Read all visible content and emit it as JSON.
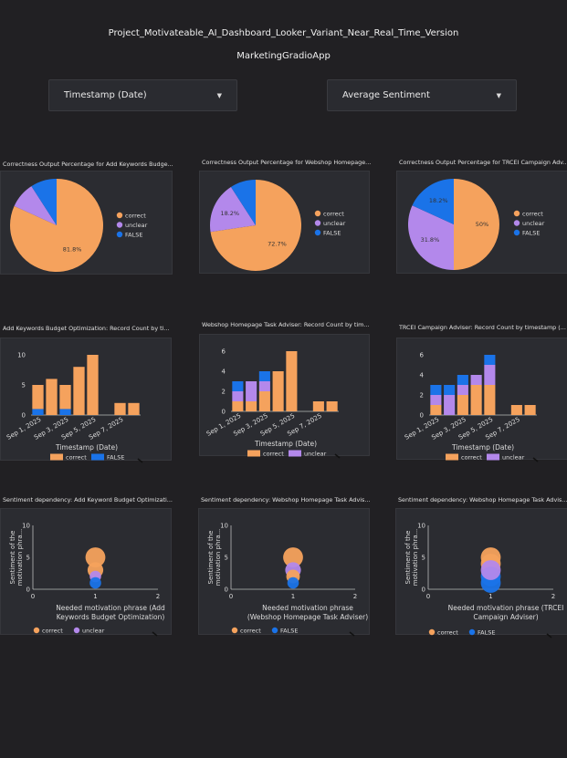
{
  "page": {
    "title": "Project_Motivateable_AI_Dashboard_Looker_Variant_Near_Real_Time_Version",
    "subtitle": "MarketingGradioApp"
  },
  "filters": [
    {
      "label": "Timestamp (Date)"
    },
    {
      "label": "Average Sentiment"
    }
  ],
  "colors": {
    "correct": "#f5a25d",
    "unclear": "#b388eb",
    "false": "#1a73e8"
  },
  "icons": {
    "caret": "caret-down-icon",
    "legend": "legend-dot-icon"
  },
  "chart_data": [
    {
      "type": "pie",
      "title": "Correctness Output Percentage for Add Keywords Budge...",
      "slices": [
        {
          "name": "correct",
          "value": 81.8,
          "label": "81.8%"
        },
        {
          "name": "unclear",
          "value": 9.1,
          "label": ""
        },
        {
          "name": "FALSE",
          "value": 9.1,
          "label": ""
        }
      ]
    },
    {
      "type": "pie",
      "title": "Correctness Output Percentage for Webshop Homepage...",
      "slices": [
        {
          "name": "correct",
          "value": 72.7,
          "label": "72.7%"
        },
        {
          "name": "unclear",
          "value": 18.2,
          "label": "18.2%"
        },
        {
          "name": "FALSE",
          "value": 9.1,
          "label": ""
        }
      ]
    },
    {
      "type": "pie",
      "title": "Correctness Output Percentage for TRCEI Campaign Adv...",
      "slices": [
        {
          "name": "correct",
          "value": 50,
          "label": "50%"
        },
        {
          "name": "unclear",
          "value": 31.8,
          "label": "31.8%"
        },
        {
          "name": "FALSE",
          "value": 18.2,
          "label": "18.2%"
        }
      ]
    },
    {
      "type": "bar",
      "stacked": true,
      "title": "Add Keywords Budget Optimization: Record Count by ti...",
      "xlabel": "Timestamp (Date)",
      "ylim": [
        0,
        10
      ],
      "yticks": [
        "0",
        "5",
        "10"
      ],
      "categories": [
        "Sep 1, 2025",
        "Sep 2, 2025",
        "Sep 3, 2025",
        "Sep 4, 2025",
        "Sep 5, 2025",
        "Sep 6, 2025",
        "Sep 7, 2025",
        "Sep 8, 2025"
      ],
      "xticks": [
        "Sep 1, 2025",
        "Sep 3, 2025",
        "Sep 5, 2025",
        "Sep 7, 2025"
      ],
      "series": [
        {
          "name": "FALSE",
          "values": [
            1,
            0,
            1,
            0,
            0,
            0,
            0,
            0
          ]
        },
        {
          "name": "correct",
          "values": [
            4,
            6,
            4,
            8,
            10,
            0,
            2,
            2
          ]
        }
      ],
      "legend": [
        "correct",
        "FALSE"
      ]
    },
    {
      "type": "bar",
      "stacked": true,
      "title": "Webshop Homepage Task Adviser: Record Count by tim...",
      "xlabel": "Timestamp (Date)",
      "ylim": [
        0,
        6
      ],
      "yticks": [
        "0",
        "2",
        "4",
        "6"
      ],
      "categories": [
        "Sep 1, 2025",
        "Sep 2, 2025",
        "Sep 3, 2025",
        "Sep 4, 2025",
        "Sep 5, 2025",
        "Sep 6, 2025",
        "Sep 7, 2025",
        "Sep 8, 2025"
      ],
      "xticks": [
        "Sep 1, 2025",
        "Sep 3, 2025",
        "Sep 5, 2025",
        "Sep 7, 2025"
      ],
      "series": [
        {
          "name": "correct",
          "values": [
            1,
            1,
            2,
            4,
            6,
            0,
            1,
            1
          ]
        },
        {
          "name": "unclear",
          "values": [
            1,
            2,
            1,
            0,
            0,
            0,
            0,
            0
          ]
        },
        {
          "name": "FALSE",
          "values": [
            1,
            0,
            1,
            0,
            0,
            0,
            0,
            0
          ]
        }
      ],
      "legend": [
        "correct",
        "unclear"
      ]
    },
    {
      "type": "bar",
      "stacked": true,
      "title": "TRCEI Campaign Adviser: Record Count by timestamp (...",
      "xlabel": "Timestamp (Date)",
      "ylim": [
        0,
        6
      ],
      "yticks": [
        "0",
        "2",
        "4",
        "6"
      ],
      "categories": [
        "Sep 1, 2025",
        "Sep 2, 2025",
        "Sep 3, 2025",
        "Sep 4, 2025",
        "Sep 5, 2025",
        "Sep 6, 2025",
        "Sep 7, 2025",
        "Sep 8, 2025"
      ],
      "xticks": [
        "Sep 1, 2025",
        "Sep 3, 2025",
        "Sep 5, 2025",
        "Sep 7, 2025"
      ],
      "series": [
        {
          "name": "correct",
          "values": [
            1,
            0,
            2,
            3,
            3,
            0,
            1,
            1
          ]
        },
        {
          "name": "unclear",
          "values": [
            1,
            2,
            1,
            1,
            2,
            0,
            0,
            0
          ]
        },
        {
          "name": "FALSE",
          "values": [
            1,
            1,
            1,
            0,
            1,
            0,
            0,
            0
          ]
        }
      ],
      "legend": [
        "correct",
        "unclear"
      ]
    },
    {
      "type": "scatter",
      "title": "Sentiment dependency: Add Keyword Budget Optimizati...",
      "xlabel": "Needed motivation phrase (Add Keywords Budget Optimization)",
      "xlabel_lines": [
        "Needed motivation phrase (Add",
        "Keywords Budget Optimization)"
      ],
      "ylabel": "Sentiment of the motivation phra...",
      "ylabel_lines": [
        "Sentiment of the",
        "motivation phra..."
      ],
      "xlim": [
        0,
        2
      ],
      "ylim": [
        0,
        10
      ],
      "xticks": [
        "0",
        "1",
        "2"
      ],
      "yticks": [
        "0",
        "5",
        "10"
      ],
      "points": [
        {
          "series": "correct",
          "x": 1,
          "y": 5,
          "size": 3
        },
        {
          "series": "correct",
          "x": 1,
          "y": 3,
          "size": 2
        },
        {
          "series": "unclear",
          "x": 1,
          "y": 2,
          "size": 1
        },
        {
          "series": "FALSE",
          "x": 1,
          "y": 1,
          "size": 1
        }
      ],
      "legend": [
        "correct",
        "unclear"
      ]
    },
    {
      "type": "scatter",
      "title": "Sentiment dependency: Webshop Homepage Task Advis...",
      "xlabel": "Needed motivation phrase (Webshop Homepage Task Adviser)",
      "xlabel_lines": [
        "Needed motivation phrase",
        "(Webshop Homepage Task Adviser)"
      ],
      "ylabel": "Sentiment of the motivation phra...",
      "ylabel_lines": [
        "Sentiment of the",
        "motivation phra..."
      ],
      "xlim": [
        0,
        2
      ],
      "ylim": [
        0,
        10
      ],
      "xticks": [
        "0",
        "1",
        "2"
      ],
      "yticks": [
        "0",
        "5",
        "10"
      ],
      "points": [
        {
          "series": "correct",
          "x": 1,
          "y": 5,
          "size": 3
        },
        {
          "series": "unclear",
          "x": 1,
          "y": 3,
          "size": 2
        },
        {
          "series": "correct",
          "x": 1,
          "y": 2,
          "size": 1.5
        },
        {
          "series": "FALSE",
          "x": 1,
          "y": 1,
          "size": 1
        }
      ],
      "legend": [
        "correct",
        "FALSE"
      ]
    },
    {
      "type": "scatter",
      "title": "Sentiment dependency: Webshop Homepage Task Advis...",
      "xlabel": "Needed motivation phrase (TRCEI Campaign Adviser)",
      "xlabel_lines": [
        "Needed motivation phrase (TRCEI",
        "Campaign Adviser)"
      ],
      "ylabel": "Sentiment of the motivation phra...",
      "ylabel_lines": [
        "Sentiment of the",
        "motivation phra..."
      ],
      "xlim": [
        0,
        2
      ],
      "ylim": [
        0,
        10
      ],
      "xticks": [
        "0",
        "1",
        "2"
      ],
      "yticks": [
        "0",
        "5",
        "10"
      ],
      "points": [
        {
          "series": "correct",
          "x": 1,
          "y": 5,
          "size": 3
        },
        {
          "series": "correct",
          "x": 1,
          "y": 4,
          "size": 3
        },
        {
          "series": "FALSE",
          "x": 1,
          "y": 1,
          "size": 3
        },
        {
          "series": "FALSE",
          "x": 1,
          "y": 2,
          "size": 3
        },
        {
          "series": "unclear",
          "x": 1,
          "y": 3,
          "size": 3
        }
      ],
      "legend": [
        "correct",
        "FALSE"
      ]
    }
  ]
}
